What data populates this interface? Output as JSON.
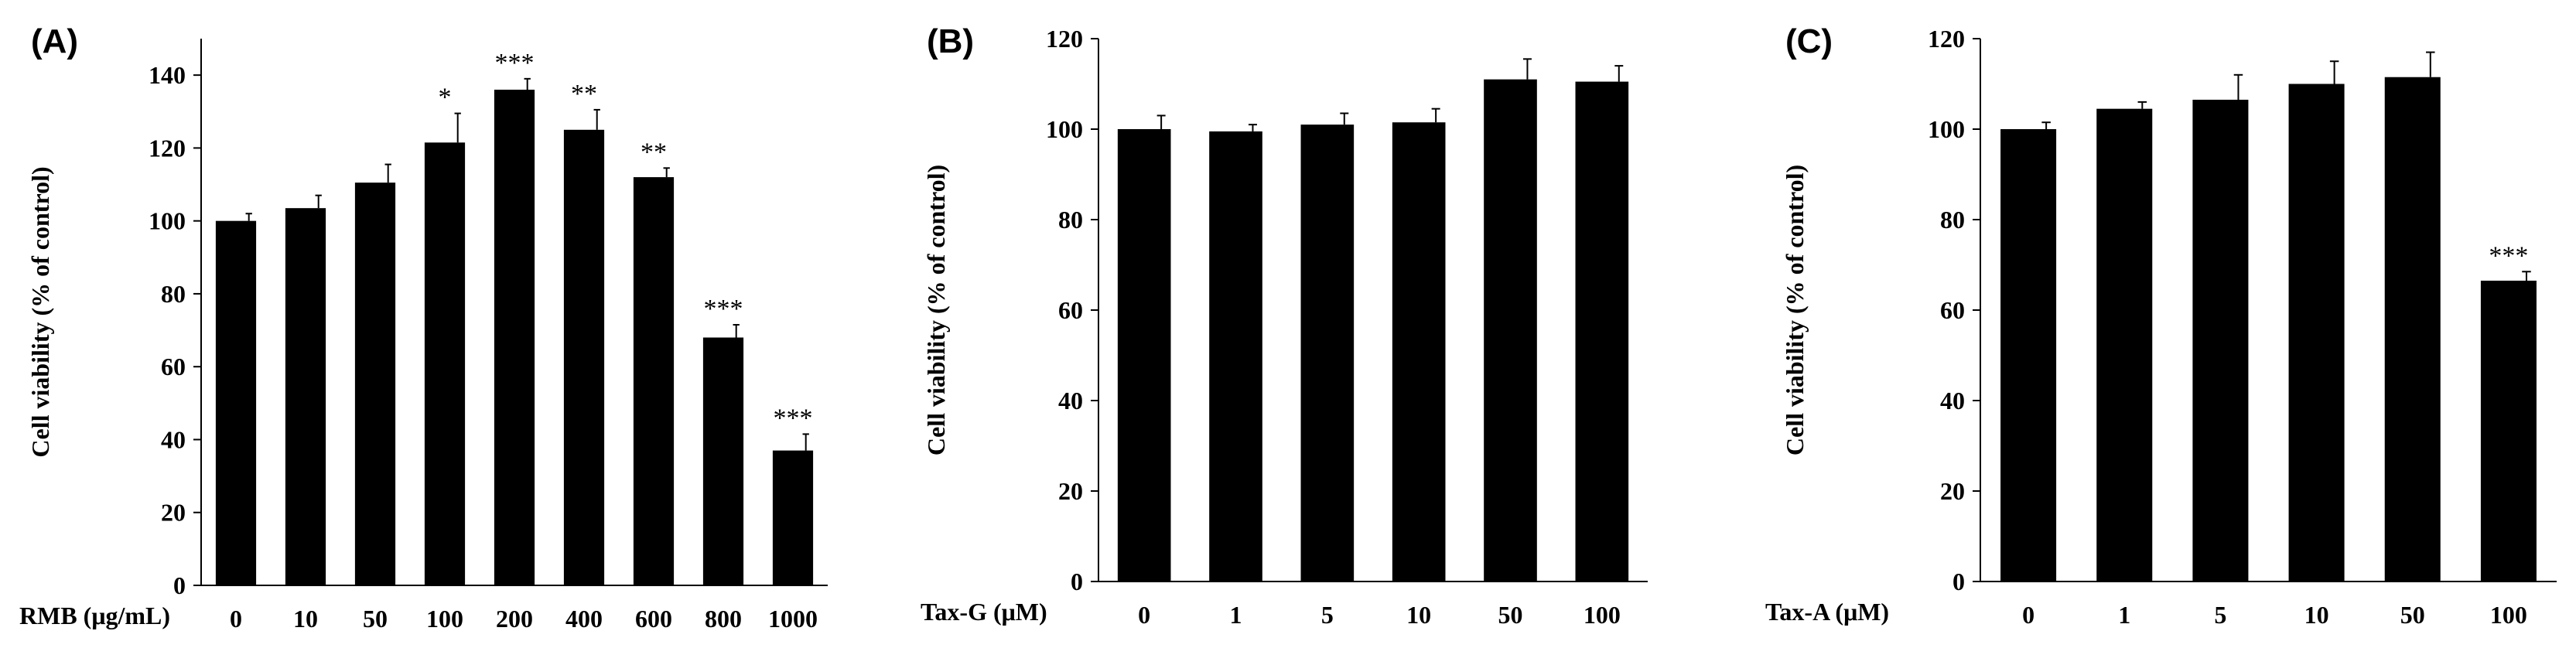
{
  "chart_data": [
    {
      "type": "bar",
      "panel": "(A)",
      "xlabel": "RMB (μg/mL)",
      "ylabel": "Cell viability  (% of control)",
      "categories": [
        "0",
        "10",
        "50",
        "100",
        "200",
        "400",
        "600",
        "800",
        "1000"
      ],
      "values": [
        100,
        103.5,
        110.5,
        121.5,
        136,
        125,
        112,
        68,
        37
      ],
      "errors": [
        2,
        3.5,
        5,
        8,
        3,
        5.5,
        2.5,
        3.5,
        4.5
      ],
      "significance": [
        "",
        "",
        "",
        "*",
        "***",
        "**",
        "**",
        "***",
        "***"
      ],
      "ylim": [
        0,
        150
      ],
      "yticks": [
        "0",
        "20",
        "40",
        "60",
        "80",
        "100",
        "120",
        "140"
      ],
      "bar_color": "#000000"
    },
    {
      "type": "bar",
      "panel": "(B)",
      "xlabel": "Tax-G (μM)",
      "ylabel": "Cell viability  (% of control)",
      "categories": [
        "0",
        "1",
        "5",
        "10",
        "50",
        "100"
      ],
      "values": [
        100,
        99.5,
        101,
        101.5,
        111,
        110.5
      ],
      "errors": [
        3,
        1.5,
        2.5,
        3,
        4.5,
        3.5
      ],
      "significance": [
        "",
        "",
        "",
        "",
        "",
        ""
      ],
      "ylim": [
        0,
        120
      ],
      "yticks": [
        "0",
        "20",
        "40",
        "60",
        "80",
        "100",
        "120"
      ],
      "bar_color": "#000000"
    },
    {
      "type": "bar",
      "panel": "(C)",
      "xlabel": "Tax-A (μM)",
      "ylabel": "Cell viability  (% of control)",
      "categories": [
        "0",
        "1",
        "5",
        "10",
        "50",
        "100"
      ],
      "values": [
        100,
        104.5,
        106.5,
        110,
        111.5,
        66.5
      ],
      "errors": [
        1.5,
        1.5,
        5.5,
        5,
        5.5,
        2
      ],
      "significance": [
        "",
        "",
        "",
        "",
        "",
        "***"
      ],
      "ylim": [
        0,
        120
      ],
      "yticks": [
        "0",
        "20",
        "40",
        "60",
        "80",
        "100",
        "120"
      ],
      "bar_color": "#000000"
    }
  ]
}
